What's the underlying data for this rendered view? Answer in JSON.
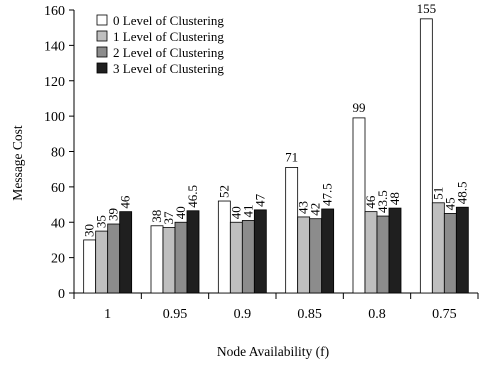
{
  "chart_data": {
    "type": "bar",
    "title": "",
    "xlabel": "Node Availability (f)",
    "ylabel": "Message Cost",
    "categories": [
      "1",
      "0.95",
      "0.9",
      "0.85",
      "0.8",
      "0.75"
    ],
    "ylim": [
      0,
      160
    ],
    "yticks": [
      0,
      20,
      40,
      60,
      80,
      100,
      120,
      140,
      160
    ],
    "grid": false,
    "legend_position": "top-left",
    "series": [
      {
        "name": "0 Level of Clustering",
        "color": "#ffffff",
        "values": [
          30,
          38,
          52,
          71,
          99,
          155
        ],
        "labels": [
          "30",
          "38",
          "52",
          "71",
          "99",
          "155"
        ]
      },
      {
        "name": "1 Level of Clustering",
        "color": "#bfbfbf",
        "values": [
          35,
          37,
          40,
          43,
          46,
          51
        ],
        "labels": [
          "35",
          "37",
          "40",
          "43",
          "46",
          "51"
        ]
      },
      {
        "name": "2 Level of Clustering",
        "color": "#8c8c8c",
        "values": [
          39,
          40,
          41,
          42,
          43.5,
          45
        ],
        "labels": [
          "39",
          "40",
          "41",
          "42",
          "43.5",
          "45"
        ]
      },
      {
        "name": "3 Level of Clustering",
        "color": "#1f1f1f",
        "values": [
          46,
          46.5,
          47,
          47.5,
          48,
          48.5
        ],
        "labels": [
          "46",
          "46.5",
          "47",
          "47.5",
          "48",
          "48.5"
        ]
      }
    ]
  }
}
